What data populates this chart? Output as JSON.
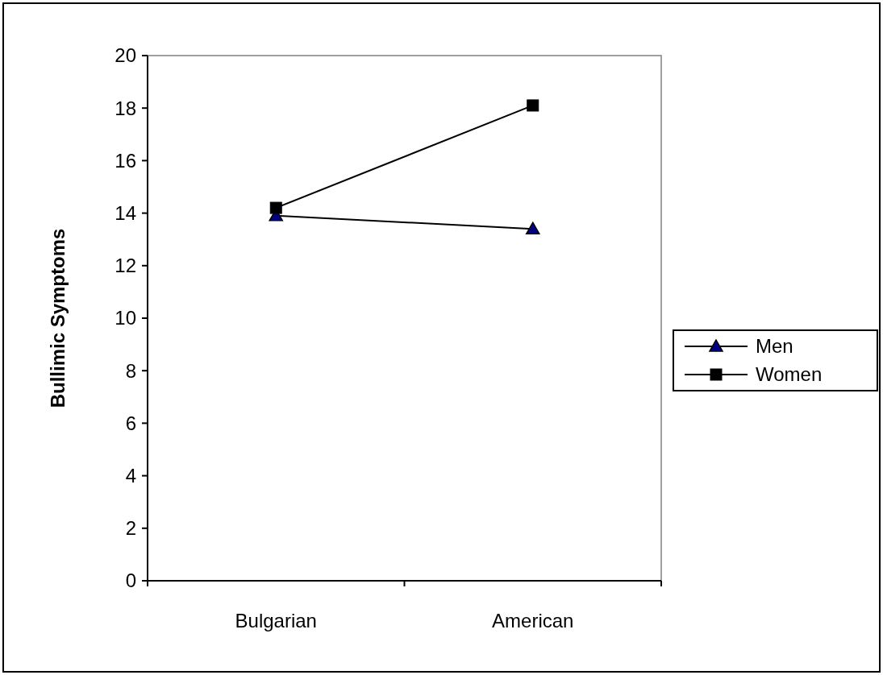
{
  "chart_data": {
    "type": "line",
    "ylabel": "Bullimic Symptoms",
    "categories": [
      "Bulgarian",
      "American"
    ],
    "series": [
      {
        "name": "Men",
        "color": "#000080",
        "values": [
          13.9,
          13.4
        ],
        "marker": "triangle"
      },
      {
        "name": "Women",
        "color": "#000000",
        "values": [
          14.2,
          18.1
        ],
        "marker": "square"
      }
    ],
    "ylim": [
      0,
      20
    ],
    "yticks": [
      0,
      2,
      4,
      6,
      8,
      10,
      12,
      14,
      16,
      18,
      20
    ],
    "legend": "right",
    "line_style": "solid"
  }
}
